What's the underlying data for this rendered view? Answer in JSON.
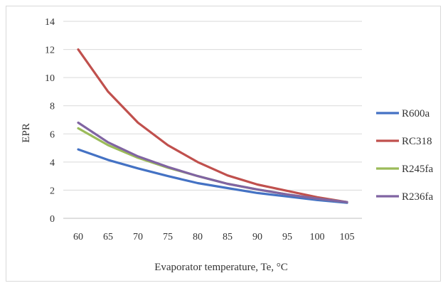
{
  "chart_data": {
    "type": "line",
    "title": "",
    "xlabel": "Evaporator temperature, Te, °C",
    "ylabel": "EPR",
    "x": [
      60,
      65,
      70,
      75,
      80,
      85,
      90,
      95,
      100,
      105
    ],
    "xlim": [
      57.5,
      107.5
    ],
    "ylim": [
      0,
      14
    ],
    "yticks": [
      0,
      2,
      4,
      6,
      8,
      10,
      12,
      14
    ],
    "grid": true,
    "legend_position": "right",
    "series": [
      {
        "name": "R600a",
        "color": "#4472c4",
        "values": [
          4.9,
          4.15,
          3.55,
          3.0,
          2.5,
          2.15,
          1.8,
          1.55,
          1.3,
          1.1
        ]
      },
      {
        "name": "RC318",
        "color": "#c0504d",
        "values": [
          12.0,
          9.0,
          6.8,
          5.2,
          4.0,
          3.05,
          2.4,
          1.95,
          1.5,
          1.15
        ]
      },
      {
        "name": "R245fa",
        "color": "#9bbb59",
        "values": [
          6.4,
          5.2,
          4.3,
          3.6,
          3.0,
          2.45,
          2.05,
          1.7,
          1.4,
          1.15
        ]
      },
      {
        "name": "R236fa",
        "color": "#8064a2",
        "values": [
          6.8,
          5.4,
          4.4,
          3.65,
          3.0,
          2.45,
          2.05,
          1.7,
          1.4,
          1.15
        ]
      }
    ]
  }
}
